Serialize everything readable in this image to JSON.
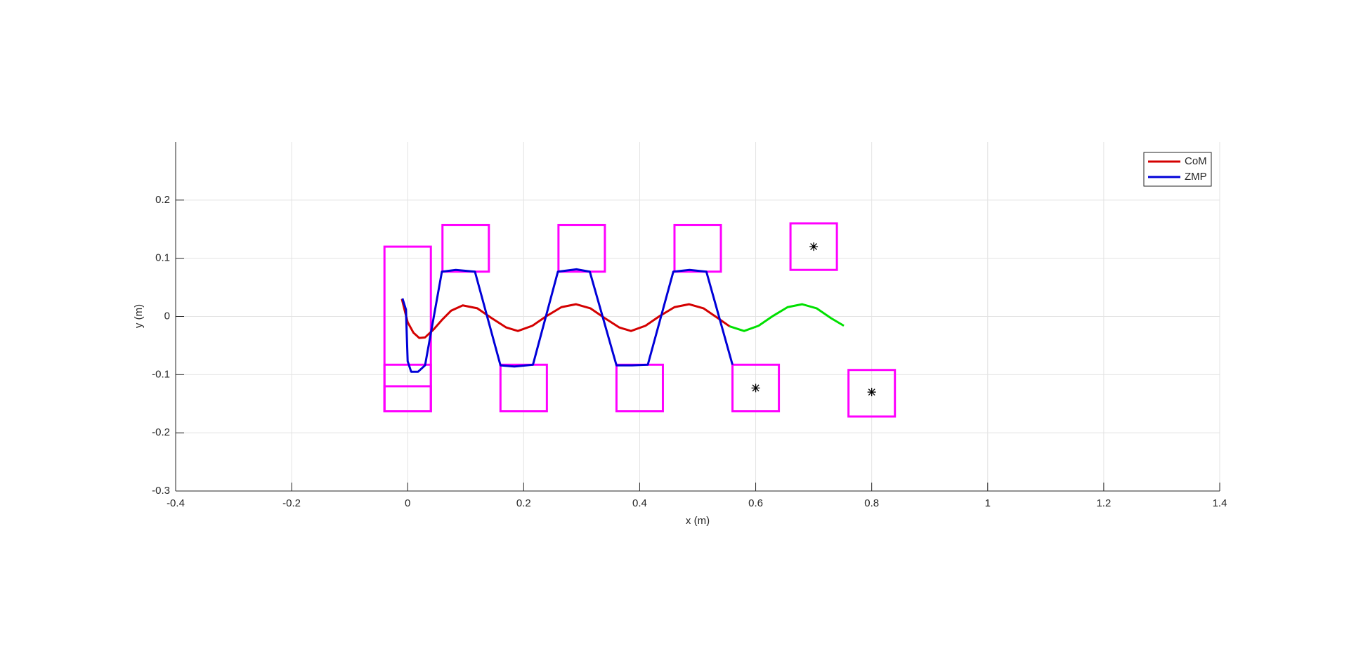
{
  "chart_data": {
    "type": "line",
    "xlabel": "x (m)",
    "ylabel": "y (m)",
    "xlim": [
      -0.4,
      1.4
    ],
    "xticks": [
      -0.4,
      -0.2,
      0,
      0.2,
      0.4,
      0.6,
      0.8,
      1,
      1.2,
      1.4
    ],
    "ylim": [
      -0.3,
      0.3
    ],
    "yticks": [
      -0.3,
      -0.2,
      -0.1,
      0,
      0.1,
      0.2
    ],
    "grid": true,
    "legend": "top-right",
    "series": [
      {
        "name": "CoM",
        "color": "#d40000",
        "x": [
          -0.01,
          -0.005,
          0.0,
          0.01,
          0.02,
          0.03,
          0.045,
          0.06,
          0.075,
          0.095,
          0.12,
          0.145,
          0.17,
          0.19,
          0.215,
          0.24,
          0.265,
          0.29,
          0.315,
          0.34,
          0.365,
          0.385,
          0.41,
          0.435,
          0.46,
          0.485,
          0.51,
          0.535,
          0.555
        ],
        "values": [
          0.03,
          0.01,
          -0.01,
          -0.028,
          -0.037,
          -0.036,
          -0.022,
          -0.005,
          0.01,
          0.019,
          0.014,
          -0.003,
          -0.019,
          -0.025,
          -0.016,
          0.001,
          0.016,
          0.021,
          0.014,
          -0.003,
          -0.019,
          -0.025,
          -0.016,
          0.001,
          0.016,
          0.021,
          0.014,
          -0.003,
          -0.017
        ]
      },
      {
        "name": "ZMP",
        "color": "#0000d8",
        "x": [
          -0.009,
          -0.003,
          0.0,
          0.006,
          0.018,
          0.03,
          0.059,
          0.083,
          0.116,
          0.16,
          0.184,
          0.216,
          0.259,
          0.291,
          0.314,
          0.36,
          0.387,
          0.414,
          0.458,
          0.486,
          0.515,
          0.56
        ],
        "values": [
          0.031,
          0.012,
          -0.077,
          -0.095,
          -0.095,
          -0.084,
          0.077,
          0.08,
          0.077,
          -0.084,
          -0.086,
          -0.083,
          0.077,
          0.081,
          0.077,
          -0.084,
          -0.084,
          -0.083,
          0.077,
          0.08,
          0.077,
          -0.083
        ]
      },
      {
        "color": "#00e000",
        "x": [
          0.555,
          0.58,
          0.605,
          0.63,
          0.655,
          0.68,
          0.705,
          0.73,
          0.752
        ],
        "values": [
          -0.017,
          -0.025,
          -0.016,
          0.001,
          0.016,
          0.021,
          0.014,
          -0.003,
          -0.016
        ]
      }
    ],
    "footsteps": {
      "color": "#ff00ff",
      "x0": [
        -0.04,
        -0.04,
        -0.04,
        0.06,
        0.16,
        0.26,
        0.36,
        0.46,
        0.56,
        0.66,
        0.76
      ],
      "x1": [
        0.04,
        0.04,
        0.04,
        0.14,
        0.24,
        0.34,
        0.44,
        0.54,
        0.64,
        0.74,
        0.84
      ],
      "y0": [
        -0.163,
        -0.163,
        -0.163,
        0.077,
        -0.163,
        0.077,
        -0.163,
        0.077,
        -0.163,
        0.08,
        -0.172
      ],
      "y1": [
        0.12,
        -0.083,
        -0.12,
        0.157,
        -0.083,
        0.157,
        -0.083,
        0.157,
        -0.083,
        0.16,
        -0.092
      ]
    },
    "markers": {
      "color": "#000000",
      "x": [
        0.6,
        0.7,
        0.8
      ],
      "values": [
        -0.123,
        0.12,
        -0.13
      ]
    }
  }
}
